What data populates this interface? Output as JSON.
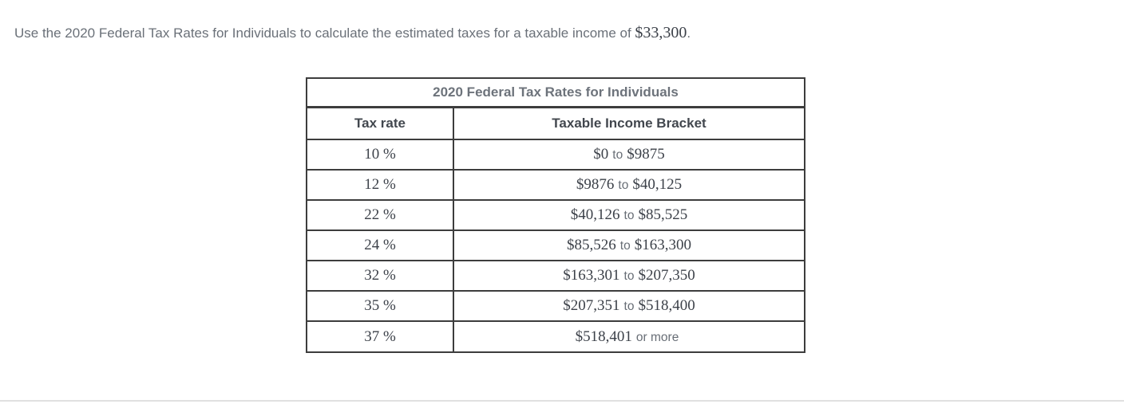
{
  "question": {
    "prefix": "Use the 2020 Federal Tax Rates for Individuals to calculate the estimated taxes for a taxable income of ",
    "amount": "$33,300",
    "suffix": "."
  },
  "table": {
    "title": "2020 Federal Tax Rates for Individuals",
    "columns": [
      "Tax rate",
      "Taxable Income Bracket"
    ],
    "rows": [
      {
        "rate": "10 %",
        "bracket_parts": [
          {
            "style": "math",
            "text": "$0"
          },
          {
            "style": "plain",
            "text": "to"
          },
          {
            "style": "math",
            "text": "$9875"
          }
        ]
      },
      {
        "rate": "12 %",
        "bracket_parts": [
          {
            "style": "math",
            "text": "$9876"
          },
          {
            "style": "plain",
            "text": "to"
          },
          {
            "style": "math",
            "text": "$40,125"
          }
        ]
      },
      {
        "rate": "22 %",
        "bracket_parts": [
          {
            "style": "math",
            "text": "$40,126"
          },
          {
            "style": "plain",
            "text": "to"
          },
          {
            "style": "math",
            "text": "$85,525"
          }
        ]
      },
      {
        "rate": "24 %",
        "bracket_parts": [
          {
            "style": "math",
            "text": "$85,526"
          },
          {
            "style": "plain",
            "text": "to"
          },
          {
            "style": "math",
            "text": "$163,300"
          }
        ]
      },
      {
        "rate": "32 %",
        "bracket_parts": [
          {
            "style": "math",
            "text": "$163,301"
          },
          {
            "style": "plain",
            "text": "to"
          },
          {
            "style": "math",
            "text": "$207,350"
          }
        ]
      },
      {
        "rate": "35 %",
        "bracket_parts": [
          {
            "style": "math",
            "text": "$207,351"
          },
          {
            "style": "plain",
            "text": "to"
          },
          {
            "style": "math",
            "text": "$518,400"
          }
        ]
      },
      {
        "rate": "37 %",
        "bracket_parts": [
          {
            "style": "math",
            "text": "$518,401"
          },
          {
            "style": "plain",
            "text": "or more"
          }
        ]
      }
    ]
  },
  "colors": {
    "question_text": "#6a7078",
    "math_text": "#3c4149",
    "table_border": "#3d3d3d",
    "table_title": "#6d737b",
    "header_text": "#42474e",
    "connector_text": "#686e76",
    "bottom_divider": "#e0e0e0",
    "background": "#ffffff"
  }
}
